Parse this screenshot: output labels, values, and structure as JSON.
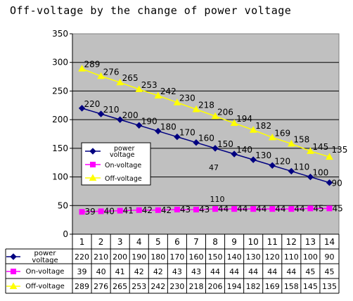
{
  "chart_data": {
    "type": "line",
    "title": "Off-voltage by the change of power voltage",
    "xlabel": "",
    "ylabel": "",
    "ylim": [
      0,
      350
    ],
    "yticks": [
      0,
      50,
      100,
      150,
      200,
      250,
      300,
      350
    ],
    "categories": [
      "1",
      "2",
      "3",
      "4",
      "5",
      "6",
      "7",
      "8",
      "9",
      "10",
      "11",
      "12",
      "13",
      "14"
    ],
    "grid": true,
    "legend_position": "center-left",
    "series": [
      {
        "name": "power voltage",
        "color": "#000080",
        "marker": "diamond",
        "values": [
          220,
          210,
          200,
          190,
          180,
          170,
          160,
          150,
          140,
          130,
          120,
          110,
          100,
          90
        ]
      },
      {
        "name": "On-voltage",
        "color": "#ff00ff",
        "marker": "square",
        "values": [
          39,
          40,
          41,
          42,
          42,
          43,
          43,
          44,
          44,
          44,
          44,
          44,
          45,
          45
        ]
      },
      {
        "name": "Off-voltage",
        "color": "#ffff00",
        "marker": "triangle",
        "values": [
          289,
          276,
          265,
          253,
          242,
          230,
          218,
          206,
          194,
          182,
          169,
          158,
          145,
          135
        ]
      }
    ],
    "annotations": [
      "47",
      "110"
    ],
    "data_table": true
  }
}
